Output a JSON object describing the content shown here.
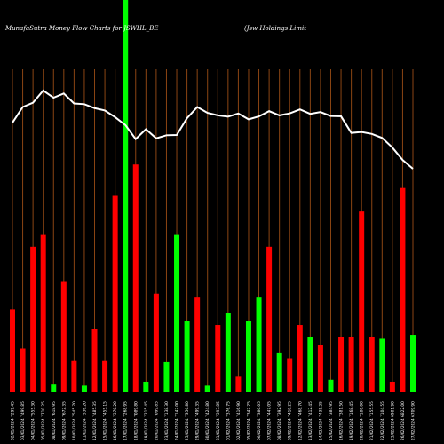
{
  "header": {
    "left_title": "MunafaSutra  Money Flow  Charts for JSWHL_BE",
    "right_title": "(Jsw  Holdings Limit"
  },
  "colors": {
    "background": "#000000",
    "grid": "#8b4513",
    "line": "#ffffff",
    "bar_red": "#ff0000",
    "bar_green": "#00ff00"
  },
  "chart_data": {
    "type": "bar",
    "title": "MunafaSutra  Money Flow  Charts for JSWHL_BE",
    "xlabel": "",
    "ylabel": "",
    "grid": true,
    "ylim": [
      0,
      100
    ],
    "categories": [
      "02/01/2024 7299.45",
      "03/01/2024 7499.85",
      "04/01/2024 7555.30",
      "05/01/2024 7710.25",
      "08/01/2024 7618.95",
      "09/01/2024 7672.35",
      "10/01/2024 7545.70",
      "11/01/2024 7536.20",
      "12/01/2024 7485.35",
      "15/01/2024 7455.15",
      "16/01/2024 7370.20",
      "17/01/2024 7268.95",
      "18/01/2024 7089.80",
      "19/01/2024 7215.45",
      "20/01/2024 7099.85",
      "23/01/2024 7138.30",
      "24/01/2024 7142.00",
      "25/01/2024 7356.80",
      "29/01/2024 7499.35",
      "30/01/2024 7424.80",
      "31/01/2024 7393.85",
      "01/02/2024 7376.75",
      "02/02/2024 7416.90",
      "05/02/2024 7342.25",
      "06/02/2024 7380.05",
      "07/02/2024 7447.05",
      "08/02/2024 7392.95",
      "09/02/2024 7418.25",
      "12/02/2024 7468.70",
      "13/02/2024 7412.45",
      "14/02/2024 7435.25",
      "15/02/2024 7384.95",
      "16/02/2024 7381.50",
      "19/02/2024 7168.45",
      "20/02/2024 7180.00",
      "21/02/2024 7155.55",
      "22/02/2024 7104.55",
      "23/02/2024 6981.90",
      "26/02/2024 6822.00",
      "27/02/2024 6709.90"
    ],
    "series": [
      {
        "type": "bar",
        "values": [
          21,
          11,
          37,
          40,
          2,
          28,
          8,
          1.5,
          16,
          8,
          50,
          100,
          58,
          2.5,
          25,
          7.5,
          40,
          18,
          24,
          1.5,
          17,
          20,
          4,
          18,
          24,
          37,
          10,
          8.5,
          17,
          14,
          12,
          3,
          14,
          14,
          46,
          14,
          13.5,
          2.5,
          52,
          14.5
        ],
        "colors": [
          "red",
          "red",
          "red",
          "red",
          "green",
          "red",
          "red",
          "green",
          "red",
          "red",
          "red",
          "green",
          "red",
          "green",
          "red",
          "green",
          "green",
          "green",
          "red",
          "green",
          "red",
          "green",
          "red",
          "green",
          "green",
          "red",
          "green",
          "red",
          "red",
          "green",
          "red",
          "green",
          "red",
          "red",
          "red",
          "red",
          "green",
          "red",
          "red",
          "green"
        ]
      },
      {
        "type": "line",
        "values": [
          7299.45,
          7499.85,
          7555.3,
          7710.25,
          7618.95,
          7672.35,
          7545.7,
          7536.2,
          7485.35,
          7455.15,
          7370.2,
          7268.95,
          7089.8,
          7215.45,
          7099.85,
          7138.3,
          7142.0,
          7356.8,
          7499.35,
          7424.8,
          7393.85,
          7376.75,
          7416.9,
          7342.25,
          7380.05,
          7447.05,
          7392.95,
          7418.25,
          7468.7,
          7412.45,
          7435.25,
          7384.95,
          7381.5,
          7168.45,
          7180.0,
          7155.55,
          7104.55,
          6981.9,
          6822.0,
          6709.9
        ]
      }
    ]
  }
}
